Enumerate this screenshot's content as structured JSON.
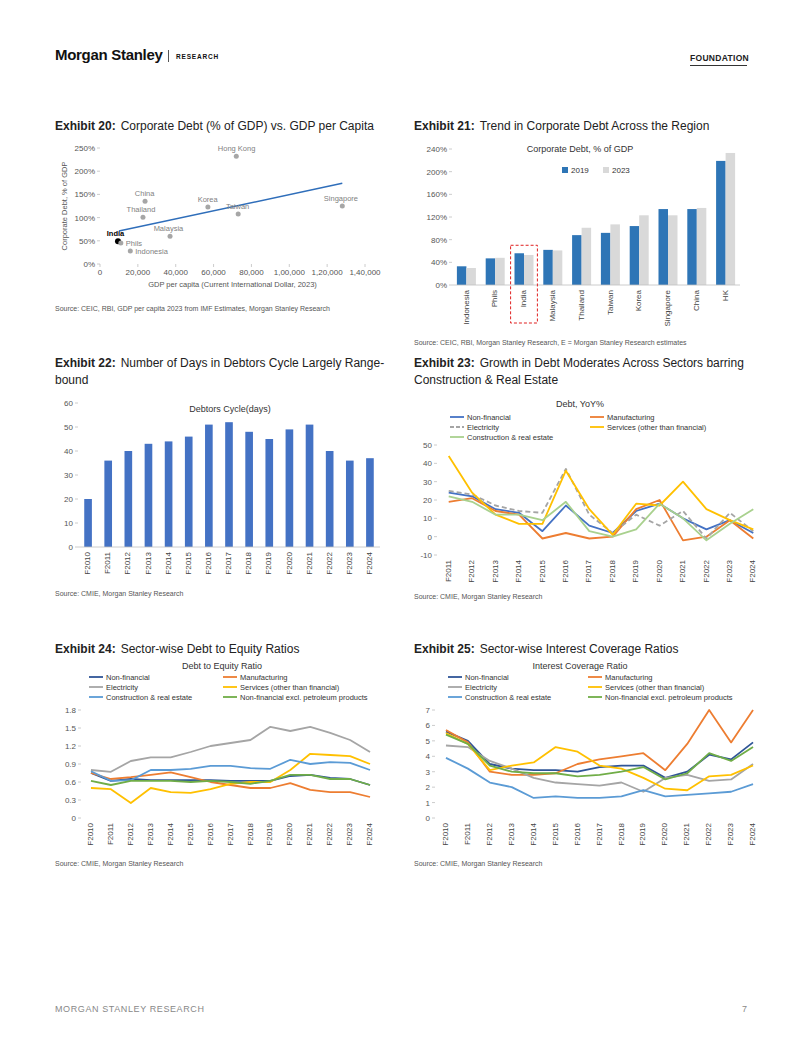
{
  "page": {
    "logo": "Morgan Stanley",
    "section": "RESEARCH",
    "tag": "FOUNDATION",
    "footer": "MORGAN STANLEY RESEARCH",
    "page_number": "7"
  },
  "chart_data": [
    {
      "type": "scatter",
      "label": "Exhibit 20:",
      "title": "Corporate Debt (% of GDP) vs. GDP per Capita",
      "source": "Source: CEIC, RBI, GDP per capita 2023 from IMF Estimates, Morgan Stanley Research",
      "xlabel": "GDP per capita (Current International Dollar, 2023)",
      "ylabel": "Corporate Debt, % of GDP",
      "labels": [
        "Hong Kong",
        "China",
        "Thailand",
        "Korea",
        "Taiwan",
        "Singapore",
        "Malaysia",
        "India",
        "Phils",
        "Indonesia"
      ],
      "x": [
        72000,
        23800,
        22700,
        57000,
        73000,
        128000,
        37000,
        9500,
        11000,
        16000
      ],
      "values": [
        232,
        135,
        101,
        123,
        108,
        125,
        60,
        49,
        45,
        28
      ],
      "color": "#a6a6a6",
      "highlight": "India",
      "trend": {
        "x": [
          10000,
          128000
        ],
        "y": [
          71,
          174
        ],
        "color": "#2f6eba"
      },
      "xlim": [
        0,
        140000
      ],
      "xticks": [
        0,
        {
          "value": 20000,
          "label": "20,000"
        },
        {
          "value": 40000,
          "label": "40,000"
        },
        {
          "value": 60000,
          "label": "60,000"
        },
        {
          "value": 80000,
          "label": "80,000"
        },
        {
          "value": 100000,
          "label": "1,00,000"
        },
        {
          "value": 120000,
          "label": "1,20,000"
        },
        {
          "value": 140000,
          "label": "1,40,000"
        }
      ],
      "ylim": [
        0,
        250
      ],
      "yticks": [
        {
          "value": 0,
          "label": "0%"
        },
        {
          "value": 50,
          "label": "50%"
        },
        {
          "value": 100,
          "label": "100%"
        },
        {
          "value": 150,
          "label": "150%"
        },
        {
          "value": 200,
          "label": "200%"
        },
        {
          "value": 250,
          "label": "250%"
        }
      ],
      "grid": false
    },
    {
      "type": "bar",
      "label": "Exhibit 21:",
      "title": "Trend in Corporate Debt Across the Region",
      "chart_title": "Corporate Debt, % of GDP",
      "source": "Source: CEIC, RBI, Morgan Stanley Research, E = Morgan Stanley Research estimates",
      "categories": [
        "Indonesia",
        "Phils",
        "India",
        "Malaysia",
        "Thailand",
        "Taiwan",
        "Korea",
        "Singapore",
        "China",
        "HK"
      ],
      "series": [
        {
          "name": "2019",
          "color": "#2e75b6",
          "values": [
            33,
            47,
            56,
            62,
            88,
            92,
            104,
            134,
            134,
            219
          ]
        },
        {
          "name": "2023",
          "color": "#d9d9d9",
          "values": [
            30,
            48,
            53,
            61,
            101,
            107,
            123,
            123,
            136,
            233
          ]
        }
      ],
      "highlight": "India",
      "legend": "top",
      "ylim": [
        0,
        240
      ],
      "yticks": [
        {
          "value": 0,
          "label": "0%"
        },
        {
          "value": 40,
          "label": "40%"
        },
        {
          "value": 80,
          "label": "80%"
        },
        {
          "value": 120,
          "label": "120%"
        },
        {
          "value": 160,
          "label": "160%"
        },
        {
          "value": 200,
          "label": "200%"
        },
        {
          "value": 240,
          "label": "240%"
        }
      ],
      "grid": false
    },
    {
      "type": "bar",
      "label": "Exhibit 22:",
      "title": "Number of Days in Debtors Cycle Largely Range-bound",
      "chart_title": "Debtors Cycle(days)",
      "source": "Source: CMIE, Morgan Stanley Research",
      "categories": [
        "F2010",
        "F2011",
        "F2012",
        "F2013",
        "F2014",
        "F2015",
        "F2016",
        "F2017",
        "F2018",
        "F2019",
        "F2020",
        "F2021",
        "F2022",
        "F2023",
        "F2024"
      ],
      "values": [
        20,
        36,
        40,
        43,
        44,
        46,
        51,
        52,
        48,
        45,
        49,
        51,
        40,
        36,
        37
      ],
      "color": "#4472c4",
      "ylim": [
        0,
        60
      ],
      "yticks": [
        0,
        10,
        20,
        30,
        40,
        50,
        60
      ],
      "grid": false
    },
    {
      "type": "line",
      "label": "Exhibit 23:",
      "title": "Growth in Debt Moderates Across Sectors barring Construction & Real Estate",
      "chart_title": "Debt, YoY%",
      "source": "Source: CMIE, Morgan Stanley Research",
      "categories": [
        "F2011",
        "F2012",
        "F2013",
        "F2014",
        "F2015",
        "F2016",
        "F2017",
        "F2018",
        "F2019",
        "F2020",
        "F2021",
        "F2022",
        "F2023",
        "F2024"
      ],
      "series": [
        {
          "name": "Non-financial",
          "color": "#4472c4",
          "values": [
            24,
            22,
            15,
            13,
            3,
            17,
            6,
            2,
            14,
            18,
            10,
            4,
            9,
            2
          ]
        },
        {
          "name": "Manufacturing",
          "color": "#ed7d31",
          "values": [
            19,
            21,
            14,
            12,
            -1,
            2,
            -1,
            0,
            15,
            20,
            -2,
            0,
            9,
            -1
          ]
        },
        {
          "name": "Electricity",
          "color": "#a5a5a5",
          "line_style": "dashed",
          "values": [
            25,
            23,
            17,
            14,
            13,
            37,
            12,
            2,
            12,
            6,
            14,
            -1,
            13,
            3
          ]
        },
        {
          "name": "Services (other than financial)",
          "color": "#ffc000",
          "values": [
            44,
            24,
            12,
            7,
            7,
            36,
            15,
            1,
            18,
            17,
            30,
            15,
            9,
            4
          ]
        },
        {
          "name": "Construction & real estate",
          "color": "#a9d18e",
          "values": [
            22,
            19,
            12,
            12,
            9,
            19,
            3,
            0,
            4,
            18,
            10,
            -2,
            7,
            15
          ]
        }
      ],
      "legend": "top",
      "ylim": [
        -10,
        50
      ],
      "yticks": [
        -10,
        0,
        10,
        20,
        30,
        40,
        50
      ],
      "grid": false
    },
    {
      "type": "line",
      "label": "Exhibit 24:",
      "title": "Sector-wise Debt to Equity Ratios",
      "chart_title": "Debt to Equity Ratio",
      "source": "Source: CMIE, Morgan Stanley Research",
      "categories": [
        "F2010",
        "F2011",
        "F2012",
        "F2013",
        "F2014",
        "F2015",
        "F2016",
        "F2017",
        "F2018",
        "F2019",
        "F2020",
        "F2021",
        "F2022",
        "F2023",
        "F2024"
      ],
      "series": [
        {
          "name": "Non-financial",
          "color": "#2f5597",
          "values": [
            0.75,
            0.62,
            0.65,
            0.63,
            0.63,
            0.63,
            0.63,
            0.62,
            0.62,
            0.62,
            0.7,
            0.72,
            0.67,
            0.65,
            0.55
          ]
        },
        {
          "name": "Manufacturing",
          "color": "#ed7d31",
          "values": [
            0.75,
            0.65,
            0.68,
            0.72,
            0.76,
            0.68,
            0.6,
            0.55,
            0.5,
            0.5,
            0.58,
            0.47,
            0.43,
            0.43,
            0.35
          ]
        },
        {
          "name": "Electricity",
          "color": "#a5a5a5",
          "values": [
            0.8,
            0.77,
            0.95,
            1.01,
            1.01,
            1.1,
            1.2,
            1.25,
            1.3,
            1.52,
            1.45,
            1.52,
            1.42,
            1.3,
            1.1
          ]
        },
        {
          "name": "Services (other than financial)",
          "color": "#ffc000",
          "values": [
            0.5,
            0.48,
            0.25,
            0.5,
            0.43,
            0.42,
            0.48,
            0.57,
            0.6,
            0.6,
            0.8,
            1.07,
            1.05,
            1.03,
            0.9
          ]
        },
        {
          "name": "Construction & real estate",
          "color": "#5b9bd5",
          "values": [
            0.78,
            0.62,
            0.63,
            0.8,
            0.8,
            0.82,
            0.87,
            0.87,
            0.83,
            0.82,
            0.97,
            0.9,
            0.93,
            0.92,
            0.8
          ]
        },
        {
          "name": "Non-financial excl. petroleum products",
          "color": "#70ad47",
          "values": [
            0.62,
            0.55,
            0.62,
            0.62,
            0.62,
            0.6,
            0.62,
            0.6,
            0.57,
            0.62,
            0.72,
            0.72,
            0.65,
            0.65,
            0.55
          ]
        }
      ],
      "legend": "top",
      "ylim": [
        0,
        1.8
      ],
      "yticks": [
        0,
        0.3,
        0.6,
        0.9,
        1.2,
        1.5,
        1.8
      ],
      "grid": false
    },
    {
      "type": "line",
      "label": "Exhibit 25:",
      "title": "Sector-wise Interest Coverage Ratios",
      "chart_title": "Interest Coverage Ratio",
      "source": "Source: CMIE, Morgan Stanley Research",
      "categories": [
        "F2010",
        "F2011",
        "F2012",
        "F2013",
        "F2014",
        "F2015",
        "F2016",
        "F2017",
        "F2018",
        "F2019",
        "F2020",
        "F2021",
        "F2022",
        "F2023",
        "F2024"
      ],
      "series": [
        {
          "name": "Non-financial",
          "color": "#2f5597",
          "values": [
            5.6,
            5,
            3.5,
            3.2,
            3.1,
            3.1,
            3,
            3.3,
            3.4,
            3.4,
            2.6,
            3,
            4.1,
            3.8,
            4.9
          ]
        },
        {
          "name": "Manufacturing",
          "color": "#ed7d31",
          "values": [
            5.7,
            4.9,
            3,
            2.8,
            2.8,
            2.9,
            3.5,
            3.8,
            4,
            4.2,
            3.1,
            4.8,
            7,
            4.9,
            7
          ]
        },
        {
          "name": "Electricity",
          "color": "#a5a5a5",
          "values": [
            4.7,
            4.6,
            3.7,
            3.2,
            2.6,
            2.3,
            2.2,
            2.1,
            2.3,
            1.7,
            2.6,
            2.8,
            2.4,
            2.5,
            3.5
          ]
        },
        {
          "name": "Services (other than financial)",
          "color": "#ffc000",
          "values": [
            5.5,
            4.8,
            3.1,
            3.4,
            3.6,
            4.6,
            4.3,
            3.4,
            3.2,
            2.6,
            1.9,
            1.8,
            2.7,
            2.8,
            3.4
          ]
        },
        {
          "name": "Construction & real estate",
          "color": "#5b9bd5",
          "values": [
            3.9,
            3.2,
            2.3,
            2,
            1.3,
            1.4,
            1.3,
            1.3,
            1.4,
            1.8,
            1.4,
            1.5,
            1.6,
            1.7,
            2.2
          ]
        },
        {
          "name": "Non-financial excl. petroleum products",
          "color": "#70ad47",
          "values": [
            5.4,
            4.8,
            3.4,
            3,
            2.9,
            2.9,
            2.7,
            2.8,
            3,
            3.3,
            2.5,
            2.9,
            4.2,
            3.7,
            4.6
          ]
        }
      ],
      "legend": "top",
      "ylim": [
        0,
        7
      ],
      "yticks": [
        0,
        1,
        2,
        3,
        4,
        5,
        6,
        7
      ],
      "grid": false
    }
  ]
}
